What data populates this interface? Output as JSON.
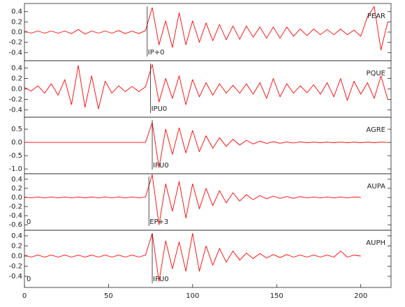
{
  "chart_data": [
    {
      "type": "line",
      "station": "PEAR",
      "color": "#ff0000",
      "xlim": [
        0,
        218
      ],
      "ylim": [
        -0.56,
        0.56
      ],
      "yticks": [
        0.4,
        0.2,
        {
          "value": 0,
          "label": "0.0"
        },
        -0.2,
        -0.4
      ],
      "annotations": [
        {
          "text": "IP+0",
          "x": 73
        }
      ],
      "x": [
        0,
        4,
        8,
        12,
        16,
        20,
        24,
        28,
        32,
        36,
        40,
        44,
        48,
        52,
        56,
        60,
        64,
        68,
        72,
        76,
        80,
        84,
        88,
        92,
        96,
        100,
        104,
        108,
        112,
        116,
        120,
        124,
        128,
        132,
        136,
        140,
        144,
        148,
        152,
        156,
        160,
        164,
        168,
        172,
        176,
        180,
        184,
        188,
        192,
        196,
        200,
        204,
        208,
        212,
        216
      ],
      "values": [
        0.02,
        -0.02,
        0.02,
        -0.02,
        0.02,
        -0.02,
        0.02,
        -0.03,
        0.05,
        -0.04,
        0.02,
        -0.02,
        0.02,
        -0.02,
        0.03,
        -0.03,
        0.02,
        -0.03,
        0.03,
        0.48,
        -0.25,
        0.22,
        -0.3,
        0.38,
        -0.25,
        0.22,
        -0.2,
        0.18,
        -0.17,
        0.15,
        -0.15,
        0.12,
        -0.14,
        0.12,
        -0.1,
        0.1,
        -0.12,
        0.1,
        -0.12,
        0.1,
        -0.08,
        0.06,
        -0.07,
        0.06,
        -0.05,
        0.05,
        -0.05,
        0.06,
        -0.05,
        0.04,
        -0.08,
        0.3,
        0.5,
        -0.35,
        0.2
      ]
    },
    {
      "type": "line",
      "station": "PQUE",
      "color": "#ff0000",
      "xlim": [
        0,
        218
      ],
      "ylim": [
        -0.54,
        0.54
      ],
      "yticks": [
        0.4,
        0.2,
        {
          "value": 0,
          "label": "0.0"
        },
        -0.2,
        -0.4
      ],
      "annotations": [
        {
          "text": "IPU0",
          "x": 75
        }
      ],
      "x": [
        0,
        4,
        8,
        12,
        16,
        20,
        24,
        28,
        32,
        36,
        40,
        44,
        48,
        52,
        56,
        60,
        64,
        68,
        72,
        76,
        80,
        84,
        88,
        92,
        96,
        100,
        104,
        108,
        112,
        116,
        120,
        124,
        128,
        132,
        136,
        140,
        144,
        148,
        152,
        156,
        160,
        164,
        168,
        172,
        176,
        180,
        184,
        188,
        192,
        196,
        200,
        204,
        208,
        212,
        216
      ],
      "values": [
        0.03,
        -0.04,
        0.06,
        -0.08,
        0.1,
        -0.12,
        0.18,
        -0.3,
        0.45,
        -0.35,
        0.25,
        -0.38,
        0.15,
        -0.08,
        0.06,
        -0.05,
        0.05,
        -0.05,
        0.04,
        0.47,
        -0.25,
        0.2,
        -0.18,
        0.25,
        -0.3,
        0.18,
        -0.15,
        0.12,
        -0.12,
        0.1,
        -0.08,
        0.07,
        -0.08,
        0.1,
        -0.1,
        0.12,
        -0.18,
        0.2,
        -0.15,
        0.1,
        -0.08,
        0.06,
        -0.07,
        0.08,
        -0.1,
        0.12,
        -0.15,
        0.2,
        -0.22,
        0.15,
        -0.1,
        0.12,
        -0.18,
        0.25,
        -0.2
      ]
    },
    {
      "type": "line",
      "station": "AGRE",
      "color": "#ff0000",
      "xlim": [
        0,
        218
      ],
      "ylim": [
        -1.18,
        0.95
      ],
      "yticks": [
        0.5,
        {
          "value": 0,
          "label": "0.0"
        },
        -0.5,
        {
          "value": -1,
          "label": "-1.0"
        }
      ],
      "annotations": [
        {
          "text": "IPU0",
          "x": 76
        }
      ],
      "x": [
        0,
        4,
        8,
        12,
        16,
        20,
        24,
        28,
        32,
        36,
        40,
        44,
        48,
        52,
        56,
        60,
        64,
        68,
        72,
        76,
        80,
        84,
        88,
        92,
        96,
        100,
        104,
        108,
        112,
        116,
        120,
        124,
        128,
        132,
        136,
        140,
        144,
        148,
        152,
        156,
        160,
        164,
        168,
        172,
        176,
        180,
        184,
        188,
        192,
        196,
        200,
        204,
        208,
        212,
        216
      ],
      "values": [
        0,
        0,
        0,
        0,
        0,
        0,
        0,
        0,
        0,
        0,
        0,
        0,
        0,
        0,
        0,
        0,
        0,
        0,
        0,
        0.75,
        -0.95,
        0.5,
        -0.45,
        0.55,
        -0.4,
        0.45,
        -0.35,
        0.25,
        -0.22,
        0.18,
        -0.15,
        0.12,
        -0.1,
        0.08,
        -0.06,
        0.05,
        -0.04,
        0.03,
        -0.03,
        0.02,
        -0.02,
        0.02,
        -0.01,
        0.01,
        -0.01,
        0.01,
        -0.01,
        0.01,
        -0.01,
        0.01,
        -0.01,
        0.01,
        -0.01,
        0.01,
        0
      ]
    },
    {
      "type": "line",
      "station": "AUPA",
      "color": "#ff0000",
      "xlim": [
        0,
        218
      ],
      "ylim": [
        -0.72,
        0.52
      ],
      "yticks": [
        0.4,
        0.2,
        {
          "value": 0,
          "label": "0.0"
        },
        -0.2,
        -0.4,
        -0.6
      ],
      "annotations": [
        {
          "text": "EP+3",
          "x": 74
        }
      ],
      "corner_label": "0",
      "x": [
        0,
        4,
        8,
        12,
        16,
        20,
        24,
        28,
        32,
        36,
        40,
        44,
        48,
        52,
        56,
        60,
        64,
        68,
        72,
        76,
        80,
        84,
        88,
        92,
        96,
        100,
        104,
        108,
        112,
        116,
        120,
        124,
        128,
        132,
        136,
        140,
        144,
        148,
        152,
        156,
        160,
        164,
        168,
        172,
        176,
        180,
        184,
        188,
        192,
        196,
        200,
        204,
        208,
        212,
        216
      ],
      "values": [
        0.01,
        -0.01,
        0.01,
        -0.01,
        0.01,
        -0.01,
        0.01,
        -0.01,
        0.01,
        -0.01,
        0.01,
        -0.01,
        0.01,
        -0.01,
        0.01,
        -0.01,
        0.01,
        -0.01,
        0.01,
        0.5,
        -0.6,
        0.3,
        -0.3,
        0.35,
        -0.45,
        0.3,
        -0.25,
        0.2,
        -0.18,
        0.15,
        -0.12,
        0.1,
        -0.08,
        0.06,
        -0.05,
        0.04,
        -0.03,
        0.03,
        -0.02,
        0.02,
        -0.02,
        0.02,
        -0.01,
        0.01,
        -0.01,
        0.01,
        -0.01,
        0.01,
        -0.01,
        0.01,
        0,
        null,
        null,
        null,
        null
      ]
    },
    {
      "type": "line",
      "station": "AUPH",
      "color": "#ff0000",
      "xlim": [
        0,
        218
      ],
      "ylim": [
        -0.62,
        0.51
      ],
      "yticks": [
        0.4,
        0.2,
        {
          "value": 0,
          "label": "0.0"
        },
        -0.2,
        -0.4
      ],
      "xticks": [
        0,
        50,
        100,
        150,
        200
      ],
      "annotations": [
        {
          "text": "IPU0",
          "x": 76
        }
      ],
      "corner_label": "0",
      "x": [
        0,
        4,
        8,
        12,
        16,
        20,
        24,
        28,
        32,
        36,
        40,
        44,
        48,
        52,
        56,
        60,
        64,
        68,
        72,
        76,
        80,
        84,
        88,
        92,
        96,
        100,
        104,
        108,
        112,
        116,
        120,
        124,
        128,
        132,
        136,
        140,
        144,
        148,
        152,
        156,
        160,
        164,
        168,
        172,
        176,
        180,
        184,
        188,
        192,
        196,
        200,
        204,
        208,
        212,
        216
      ],
      "values": [
        0.02,
        -0.02,
        0.02,
        -0.02,
        0.02,
        -0.02,
        0.02,
        -0.02,
        0.02,
        -0.02,
        0.02,
        -0.02,
        0.02,
        -0.02,
        0.02,
        -0.02,
        0.02,
        -0.02,
        0.02,
        0.45,
        -0.5,
        0.3,
        -0.25,
        0.28,
        -0.3,
        0.45,
        -0.3,
        0.2,
        -0.18,
        0.15,
        -0.12,
        0.1,
        -0.08,
        0.06,
        -0.05,
        0.05,
        -0.04,
        0.03,
        -0.03,
        0.03,
        -0.02,
        0.02,
        -0.02,
        0.02,
        -0.02,
        0.02,
        -0.02,
        0.1,
        -0.02,
        0.02,
        0,
        null,
        null,
        null,
        null
      ]
    }
  ]
}
